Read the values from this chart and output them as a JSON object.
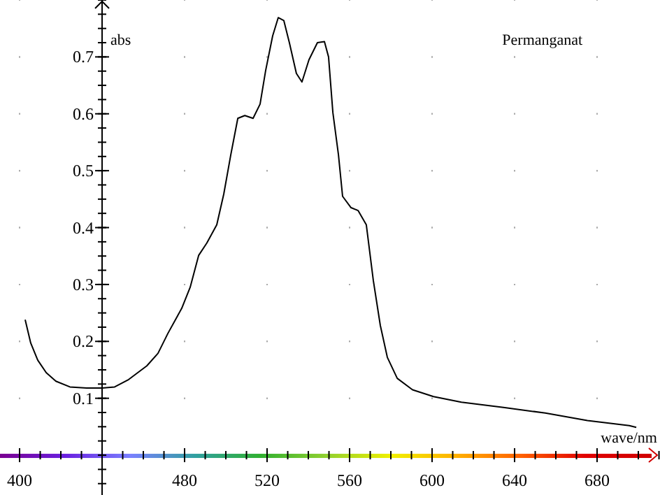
{
  "chart_data": {
    "type": "line",
    "title": "Permanganat",
    "xlabel": "wave/nm",
    "ylabel": "abs",
    "xlim": [
      390.5,
      710.5
    ],
    "ylim": [
      -0.07,
      0.8
    ],
    "xticks": [
      400,
      {
        "value": 440,
        "label": null
      },
      480,
      520,
      560,
      600,
      640,
      680
    ],
    "yticks": [
      0.1,
      0.2,
      0.3,
      0.4,
      0.5,
      0.6,
      0.7
    ],
    "grid": true,
    "series": [
      {
        "color": "#000000",
        "x": [
          402.7,
          405.4,
          408.8,
          412.9,
          417.6,
          424.4,
          432.5,
          440,
          446.1,
          452.9,
          461.7,
          467.1,
          471.9,
          478.6,
          482.7,
          486.8,
          490.8,
          495.6,
          499,
          502.4,
          505.8,
          509.2,
          513.2,
          516.6,
          519.3,
          522.7,
          525.4,
          528.1,
          530.8,
          534.2,
          536.9,
          540.3,
          544.4,
          547.8,
          549.8,
          551.9,
          554.6,
          556.6,
          560.7,
          564.1,
          568.1,
          571.5,
          574.9,
          578.3,
          583.1,
          590.5,
          600.7,
          614.2,
          634.6,
          654.9,
          675.3,
          695.6,
          699
        ],
        "values": [
          0.238,
          0.197,
          0.167,
          0.145,
          0.13,
          0.12,
          0.118,
          0.118,
          0.12,
          0.133,
          0.157,
          0.179,
          0.214,
          0.258,
          0.295,
          0.351,
          0.373,
          0.405,
          0.459,
          0.528,
          0.592,
          0.597,
          0.592,
          0.617,
          0.676,
          0.737,
          0.769,
          0.764,
          0.725,
          0.671,
          0.656,
          0.695,
          0.725,
          0.727,
          0.7,
          0.602,
          0.528,
          0.455,
          0.435,
          0.43,
          0.405,
          0.307,
          0.228,
          0.172,
          0.135,
          0.115,
          0.103,
          0.093,
          0.084,
          0.074,
          0.061,
          0.052,
          0.049
        ]
      }
    ]
  }
}
